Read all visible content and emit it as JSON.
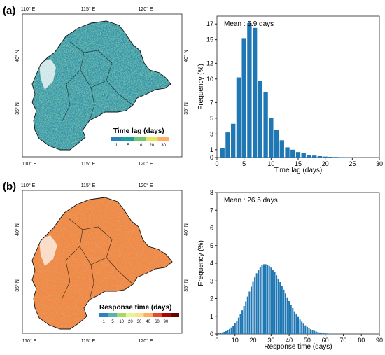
{
  "panels": [
    {
      "label": "(a)",
      "map": {
        "top_ticks": [
          "110° E",
          "115° E",
          "120° E"
        ],
        "bottom_ticks": [
          "110° E",
          "115° E",
          "120° E"
        ],
        "lat_ticks": [
          "40° N",
          "35° N"
        ],
        "legend_title": "Time lag (days)",
        "legend_ticks": [
          "1",
          "5",
          "10",
          "20",
          "30"
        ],
        "legend_colors": [
          "#2b83ba",
          "#1d9e9e",
          "#74c476",
          "#e7e55c",
          "#fdae61"
        ]
      },
      "hist_text": {
        "mean": "Mean : 5.9 days"
      }
    },
    {
      "label": "(b)",
      "map": {
        "top_ticks": [
          "110° E",
          "115° E",
          "120° E"
        ],
        "bottom_ticks": [
          "110° E",
          "115° E",
          "120° E"
        ],
        "lat_ticks": [
          "40° N",
          "35° N"
        ],
        "legend_title": "Response time (days)",
        "legend_ticks": [
          "1",
          "5",
          "10",
          "20",
          "30",
          "40",
          "60",
          "90"
        ],
        "legend_colors": [
          "#2b83ba",
          "#5ab4ac",
          "#a6d96a",
          "#e6f598",
          "#fee08b",
          "#fdae61",
          "#e34a33",
          "#b30000",
          "#6b0000"
        ]
      },
      "hist_text": {
        "mean": "Mean : 26.5 days"
      }
    }
  ],
  "chart_data": [
    {
      "type": "bar",
      "title": "",
      "xlabel": "Time lag (days)",
      "ylabel": "Frequency (%)",
      "xlim": [
        0,
        30
      ],
      "ylim": [
        0,
        18
      ],
      "xticks": [
        0,
        5,
        10,
        15,
        20,
        25,
        30
      ],
      "yticks": [
        0,
        1,
        3,
        5,
        7,
        10,
        12,
        15,
        17
      ],
      "bar_color": "#1f77b4",
      "x": [
        1,
        2,
        3,
        4,
        5,
        6,
        7,
        8,
        9,
        10,
        11,
        12,
        13,
        14,
        15,
        16,
        17,
        18,
        19,
        20,
        21,
        22,
        23,
        24,
        25,
        26
      ],
      "values": [
        1.2,
        3.2,
        4.3,
        10.2,
        15.2,
        17.1,
        16.5,
        9.8,
        8.3,
        5.0,
        3.5,
        2.2,
        1.3,
        1.0,
        0.7,
        0.55,
        0.35,
        0.25,
        0.18,
        0.12,
        0.09,
        0.07,
        0.05,
        0.03,
        0.02,
        0.01
      ],
      "annotation": "Mean : 5.9 days"
    },
    {
      "type": "bar",
      "title": "",
      "xlabel": "Response time (days)",
      "ylabel": "Frequency (%)",
      "xlim": [
        0,
        90
      ],
      "ylim": [
        0,
        8
      ],
      "xticks": [
        0,
        10,
        20,
        30,
        40,
        50,
        60,
        70,
        80,
        90
      ],
      "yticks": [
        0,
        1,
        2,
        3,
        4,
        5,
        6,
        7,
        8
      ],
      "bar_color": "#1f77b4",
      "mean_days": 26.5,
      "peak_value": 3.95,
      "x_range": [
        1,
        85
      ],
      "annotation": "Mean : 26.5 days"
    }
  ]
}
